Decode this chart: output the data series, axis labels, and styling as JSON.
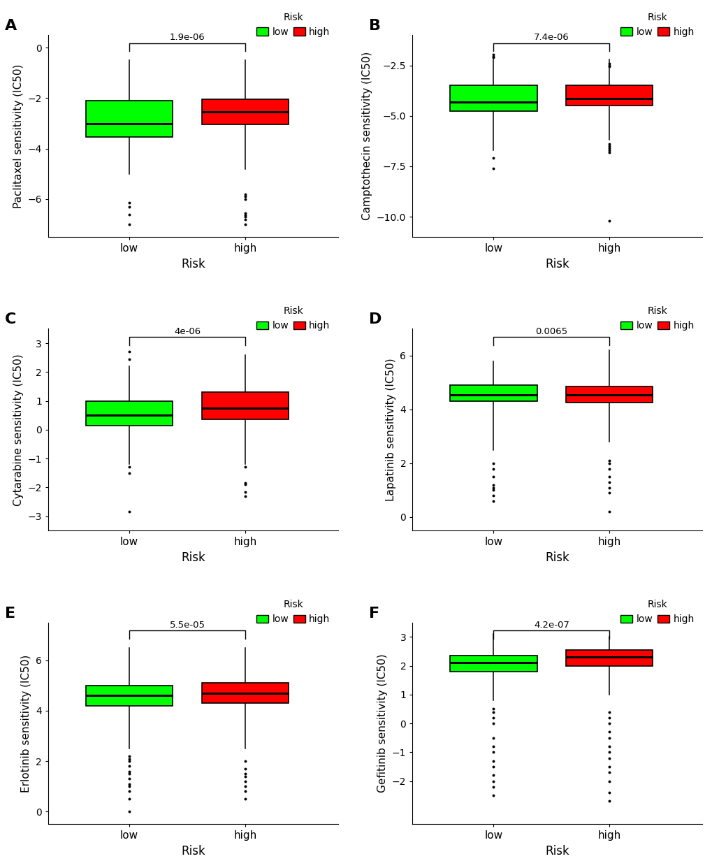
{
  "panels": [
    {
      "label": "A",
      "ylabel": "Paclitaxel sensitivity (IC50)",
      "pvalue": "1.9e-06",
      "low": {
        "q1": -3.55,
        "median": -3.0,
        "q3": -2.1,
        "whisker_low": -5.0,
        "whisker_high": -0.5,
        "outliers": [
          -6.3,
          -6.15,
          -6.6,
          -7.0
        ]
      },
      "high": {
        "q1": -3.05,
        "median": -2.55,
        "q3": -2.05,
        "whisker_low": -4.8,
        "whisker_high": -0.5,
        "outliers": [
          -5.9,
          -6.0,
          -6.55,
          -5.8,
          -6.65,
          -6.7,
          -6.8,
          -7.0
        ]
      },
      "ylim": [
        -7.5,
        0.5
      ],
      "yticks": [
        0,
        -2,
        -4,
        -6
      ]
    },
    {
      "label": "B",
      "ylabel": "Camptothecin sensitivity (IC50)",
      "pvalue": "7.4e-06",
      "low": {
        "q1": -4.75,
        "median": -4.3,
        "q3": -3.5,
        "whisker_low": -6.7,
        "whisker_high": -2.2,
        "outliers": [
          -7.6,
          -7.1,
          -1.95,
          -2.05,
          -2.1
        ]
      },
      "high": {
        "q1": -4.5,
        "median": -4.15,
        "q3": -3.5,
        "whisker_low": -6.2,
        "whisker_high": -2.2,
        "outliers": [
          -6.5,
          -6.6,
          -6.7,
          -6.4,
          -6.8,
          -10.2,
          -2.4,
          -2.5,
          -2.55
        ]
      },
      "ylim": [
        -11.0,
        -1.0
      ],
      "yticks": [
        -2.5,
        -5.0,
        -7.5,
        -10.0
      ]
    },
    {
      "label": "C",
      "ylabel": "Cytarabine sensitivity (IC50)",
      "pvalue": "4e-06",
      "low": {
        "q1": 0.15,
        "median": 0.5,
        "q3": 1.0,
        "whisker_low": -1.2,
        "whisker_high": 2.2,
        "outliers": [
          -1.3,
          -1.5,
          -2.85,
          2.7,
          2.45
        ]
      },
      "high": {
        "q1": 0.35,
        "median": 0.75,
        "q3": 1.3,
        "whisker_low": -1.2,
        "whisker_high": 2.6,
        "outliers": [
          -1.3,
          -1.85,
          -1.9,
          -2.15,
          -2.3
        ]
      },
      "ylim": [
        -3.5,
        3.5
      ],
      "yticks": [
        3,
        2,
        1,
        0,
        -1,
        -2,
        -3
      ]
    },
    {
      "label": "D",
      "ylabel": "Lapatinib sensitivity (IC50)",
      "pvalue": "0.0065",
      "low": {
        "q1": 4.3,
        "median": 4.55,
        "q3": 4.9,
        "whisker_low": 2.5,
        "whisker_high": 5.8,
        "outliers": [
          1.2,
          0.6,
          0.8,
          1.0,
          1.1,
          1.5,
          1.8,
          2.0
        ]
      },
      "high": {
        "q1": 4.25,
        "median": 4.55,
        "q3": 4.85,
        "whisker_low": 2.8,
        "whisker_high": 6.2,
        "outliers": [
          0.2,
          0.9,
          1.1,
          1.3,
          1.5,
          1.8,
          2.0,
          2.1
        ]
      },
      "ylim": [
        -0.5,
        7.0
      ],
      "yticks": [
        0,
        2,
        4,
        6
      ]
    },
    {
      "label": "E",
      "ylabel": "Erlotinib sensitivity (IC50)",
      "pvalue": "5.5e-05",
      "low": {
        "q1": 4.2,
        "median": 4.6,
        "q3": 5.0,
        "whisker_low": 2.5,
        "whisker_high": 6.5,
        "outliers": [
          0.0,
          0.5,
          0.8,
          1.0,
          1.1,
          1.3,
          1.5,
          1.6,
          1.8,
          2.0,
          2.1,
          2.2
        ]
      },
      "high": {
        "q1": 4.3,
        "median": 4.7,
        "q3": 5.1,
        "whisker_low": 2.5,
        "whisker_high": 6.5,
        "outliers": [
          0.5,
          0.8,
          1.0,
          1.2,
          1.4,
          1.5,
          1.7,
          2.0
        ]
      },
      "ylim": [
        -0.5,
        7.5
      ],
      "yticks": [
        0,
        2,
        4,
        6
      ]
    },
    {
      "label": "F",
      "ylabel": "Gefitinib sensitivity (IC50)",
      "pvalue": "4.2e-07",
      "low": {
        "q1": 1.8,
        "median": 2.1,
        "q3": 2.35,
        "whisker_low": 0.8,
        "whisker_high": 3.1,
        "outliers": [
          -2.5,
          -2.2,
          -2.0,
          -1.8,
          -1.5,
          -1.3,
          -1.0,
          -0.8,
          -0.5,
          0.0,
          0.2,
          0.4,
          0.5
        ]
      },
      "high": {
        "q1": 2.0,
        "median": 2.3,
        "q3": 2.55,
        "whisker_low": 1.0,
        "whisker_high": 3.0,
        "outliers": [
          -2.7,
          -2.4,
          -2.0,
          -1.7,
          -1.5,
          -1.2,
          -1.0,
          -0.8,
          -0.5,
          -0.3,
          0.0,
          0.2,
          0.4
        ]
      },
      "ylim": [
        -3.5,
        3.5
      ],
      "yticks": [
        3,
        2,
        1,
        0,
        -1,
        -2
      ]
    }
  ],
  "colors": {
    "low": "#00FF00",
    "high": "#FF0000",
    "box_edge": "#000000",
    "median_line": "#000000",
    "whisker": "#000000",
    "flier": "#000000"
  },
  "legend_label": "Risk",
  "group_labels": [
    "low",
    "high"
  ],
  "xlabel": "Risk",
  "background": "#FFFFFF"
}
